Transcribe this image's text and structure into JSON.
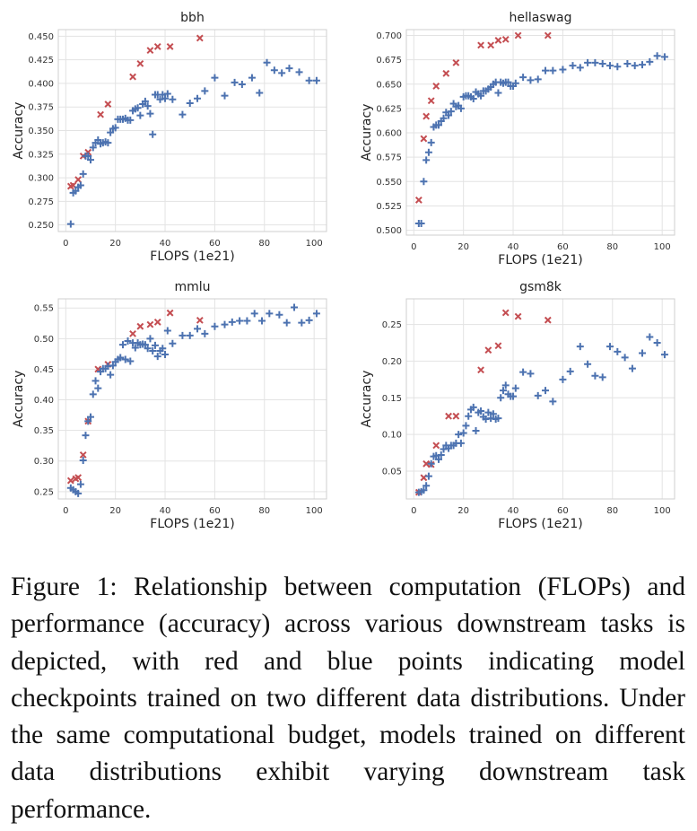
{
  "chart_data": [
    {
      "type": "scatter",
      "title": "bbh",
      "xlabel": "FLOPS (1e21)",
      "ylabel": "Accuracy",
      "xlim": [
        -3,
        105
      ],
      "ylim": [
        0.243,
        0.457
      ],
      "xticks": [
        0,
        20,
        40,
        60,
        80,
        100
      ],
      "yticks": [
        0.25,
        0.275,
        0.3,
        0.325,
        0.35,
        0.375,
        0.4,
        0.425,
        0.45
      ],
      "ytick_labels": [
        "0.250",
        "0.275",
        "0.300",
        "0.325",
        "0.350",
        "0.375",
        "0.400",
        "0.425",
        "0.450"
      ],
      "grid": true,
      "series": [
        {
          "marker": "x",
          "color": "#c44e52",
          "x": [
            2,
            3,
            5,
            7,
            9,
            14,
            17,
            27,
            30,
            34,
            37,
            42,
            54
          ],
          "y": [
            0.291,
            0.292,
            0.298,
            0.323,
            0.327,
            0.367,
            0.378,
            0.407,
            0.421,
            0.435,
            0.439,
            0.439,
            0.448
          ]
        },
        {
          "marker": "+",
          "color": "#4c72b0",
          "x": [
            2,
            3,
            4,
            5,
            6,
            7,
            8,
            9,
            10,
            11,
            12,
            13,
            14,
            15,
            16,
            17,
            18,
            19,
            20,
            21,
            22,
            23,
            24,
            25,
            26,
            27,
            28,
            29,
            30,
            31,
            32,
            33,
            34,
            35,
            36,
            37,
            38,
            39,
            40,
            41,
            43,
            47,
            50,
            53,
            56,
            60,
            64,
            68,
            71,
            75,
            78,
            81,
            84,
            87,
            90,
            94,
            98,
            101
          ],
          "y": [
            0.251,
            0.284,
            0.286,
            0.29,
            0.292,
            0.304,
            0.323,
            0.323,
            0.319,
            0.332,
            0.337,
            0.34,
            0.336,
            0.337,
            0.338,
            0.337,
            0.348,
            0.352,
            0.353,
            0.362,
            0.362,
            0.362,
            0.363,
            0.361,
            0.361,
            0.371,
            0.373,
            0.374,
            0.366,
            0.378,
            0.381,
            0.376,
            0.368,
            0.346,
            0.388,
            0.388,
            0.383,
            0.388,
            0.384,
            0.389,
            0.383,
            0.367,
            0.379,
            0.384,
            0.392,
            0.406,
            0.387,
            0.401,
            0.399,
            0.406,
            0.39,
            0.422,
            0.414,
            0.411,
            0.416,
            0.412,
            0.403,
            0.403
          ]
        }
      ]
    },
    {
      "type": "scatter",
      "title": "hellaswag",
      "xlabel": "FLOPS (1e21)",
      "ylabel": "Accuracy",
      "xlim": [
        -3,
        105
      ],
      "ylim": [
        0.495,
        0.706
      ],
      "xticks": [
        0,
        20,
        40,
        60,
        80,
        100
      ],
      "yticks": [
        0.5,
        0.525,
        0.55,
        0.575,
        0.6,
        0.625,
        0.65,
        0.675,
        0.7
      ],
      "ytick_labels": [
        "0.500",
        "0.525",
        "0.550",
        "0.575",
        "0.600",
        "0.625",
        "0.650",
        "0.675",
        "0.700"
      ],
      "grid": true,
      "series": [
        {
          "marker": "x",
          "color": "#c44e52",
          "x": [
            2,
            4,
            5,
            7,
            9,
            13,
            17,
            27,
            31,
            34,
            37,
            42,
            54
          ],
          "y": [
            0.531,
            0.594,
            0.617,
            0.633,
            0.648,
            0.661,
            0.672,
            0.69,
            0.69,
            0.695,
            0.696,
            0.7,
            0.7
          ],
          "names": []
        },
        {
          "marker": "+",
          "color": "#4c72b0",
          "x": [
            2,
            3,
            4,
            5,
            6,
            7,
            8,
            9,
            10,
            11,
            12,
            13,
            14,
            15,
            16,
            17,
            18,
            19,
            20,
            21,
            22,
            23,
            24,
            25,
            26,
            27,
            28,
            29,
            30,
            31,
            32,
            33,
            34,
            35,
            36,
            37,
            38,
            39,
            40,
            41,
            44,
            47,
            50,
            53,
            56,
            60,
            64,
            67,
            70,
            73,
            76,
            79,
            82,
            86,
            89,
            92,
            95,
            98,
            101
          ],
          "y": [
            0.507,
            0.507,
            0.55,
            0.572,
            0.58,
            0.59,
            0.606,
            0.608,
            0.608,
            0.612,
            0.615,
            0.621,
            0.618,
            0.622,
            0.63,
            0.627,
            0.628,
            0.625,
            0.637,
            0.638,
            0.638,
            0.637,
            0.635,
            0.642,
            0.64,
            0.638,
            0.643,
            0.643,
            0.645,
            0.647,
            0.65,
            0.652,
            0.641,
            0.652,
            0.651,
            0.652,
            0.652,
            0.648,
            0.648,
            0.651,
            0.657,
            0.654,
            0.655,
            0.664,
            0.664,
            0.665,
            0.669,
            0.667,
            0.672,
            0.672,
            0.671,
            0.669,
            0.668,
            0.671,
            0.669,
            0.67,
            0.673,
            0.679,
            0.678
          ]
        }
      ]
    },
    {
      "type": "scatter",
      "title": "mmlu",
      "xlabel": "FLOPS (1e21)",
      "ylabel": "Accuracy",
      "xlim": [
        -3,
        105
      ],
      "ylim": [
        0.238,
        0.565
      ],
      "xticks": [
        0,
        20,
        40,
        60,
        80,
        100
      ],
      "yticks": [
        0.25,
        0.3,
        0.35,
        0.4,
        0.45,
        0.5,
        0.55
      ],
      "ytick_labels": [
        "0.25",
        "0.30",
        "0.35",
        "0.40",
        "0.45",
        "0.50",
        "0.55"
      ],
      "grid": true,
      "series": [
        {
          "marker": "x",
          "color": "#c44e52",
          "x": [
            2,
            4,
            5,
            7,
            9,
            13,
            17,
            27,
            30,
            34,
            37,
            42,
            54
          ],
          "y": [
            0.268,
            0.271,
            0.273,
            0.31,
            0.365,
            0.45,
            0.458,
            0.508,
            0.52,
            0.523,
            0.527,
            0.542,
            0.53
          ]
        },
        {
          "marker": "+",
          "color": "#4c72b0",
          "x": [
            2,
            3,
            4,
            5,
            6,
            7,
            8,
            9,
            10,
            11,
            12,
            13,
            14,
            15,
            16,
            17,
            18,
            19,
            20,
            21,
            22,
            23,
            24,
            25,
            26,
            27,
            28,
            29,
            30,
            31,
            32,
            33,
            34,
            35,
            36,
            37,
            38,
            39,
            40,
            41,
            43,
            47,
            50,
            53,
            56,
            60,
            64,
            67,
            70,
            73,
            76,
            79,
            82,
            86,
            89,
            92,
            95,
            98,
            101
          ],
          "y": [
            0.256,
            0.253,
            0.25,
            0.247,
            0.262,
            0.301,
            0.342,
            0.365,
            0.372,
            0.409,
            0.431,
            0.419,
            0.446,
            0.451,
            0.451,
            0.455,
            0.441,
            0.456,
            0.462,
            0.466,
            0.469,
            0.49,
            0.466,
            0.496,
            0.463,
            0.493,
            0.485,
            0.493,
            0.49,
            0.491,
            0.49,
            0.484,
            0.5,
            0.48,
            0.489,
            0.471,
            0.48,
            0.484,
            0.474,
            0.513,
            0.492,
            0.505,
            0.505,
            0.516,
            0.508,
            0.52,
            0.523,
            0.527,
            0.529,
            0.529,
            0.541,
            0.529,
            0.541,
            0.539,
            0.526,
            0.551,
            0.526,
            0.53,
            0.541
          ]
        }
      ]
    },
    {
      "type": "scatter",
      "title": "gsm8k",
      "xlabel": "FLOPS (1e21)",
      "ylabel": "Accuracy",
      "xlim": [
        -3,
        105
      ],
      "ylim": [
        0.012,
        0.285
      ],
      "xticks": [
        0,
        20,
        40,
        60,
        80,
        100
      ],
      "yticks": [
        0.05,
        0.1,
        0.15,
        0.2,
        0.25
      ],
      "ytick_labels": [
        "0.05",
        "0.10",
        "0.15",
        "0.20",
        "0.25"
      ],
      "grid": true,
      "series": [
        {
          "marker": "x",
          "color": "#c44e52",
          "x": [
            2,
            4,
            5,
            7,
            9,
            14,
            17,
            27,
            30,
            34,
            37,
            42,
            54
          ],
          "y": [
            0.021,
            0.041,
            0.06,
            0.059,
            0.085,
            0.125,
            0.125,
            0.188,
            0.215,
            0.221,
            0.266,
            0.261,
            0.256
          ]
        },
        {
          "marker": "+",
          "color": "#4c72b0",
          "x": [
            2,
            3,
            4,
            5,
            6,
            7,
            8,
            9,
            10,
            11,
            12,
            13,
            14,
            15,
            16,
            17,
            18,
            19,
            20,
            21,
            22,
            23,
            24,
            25,
            26,
            27,
            28,
            29,
            30,
            31,
            32,
            33,
            34,
            35,
            36,
            37,
            38,
            39,
            40,
            41,
            44,
            47,
            50,
            53,
            56,
            60,
            63,
            67,
            70,
            73,
            76,
            79,
            82,
            85,
            88,
            92,
            95,
            98,
            101
          ],
          "y": [
            0.021,
            0.022,
            0.024,
            0.03,
            0.043,
            0.06,
            0.07,
            0.071,
            0.066,
            0.072,
            0.08,
            0.085,
            0.081,
            0.085,
            0.085,
            0.088,
            0.1,
            0.088,
            0.102,
            0.112,
            0.125,
            0.134,
            0.137,
            0.105,
            0.13,
            0.132,
            0.124,
            0.121,
            0.13,
            0.122,
            0.128,
            0.121,
            0.122,
            0.15,
            0.16,
            0.167,
            0.155,
            0.152,
            0.152,
            0.163,
            0.185,
            0.183,
            0.153,
            0.16,
            0.145,
            0.175,
            0.186,
            0.22,
            0.196,
            0.18,
            0.178,
            0.22,
            0.213,
            0.205,
            0.19,
            0.211,
            0.233,
            0.225,
            0.209
          ]
        }
      ]
    }
  ],
  "caption": "Figure 1: Relationship between computation (FLOPs) and performance (accuracy) across various downstream tasks is depicted, with red and blue points indicating model checkpoints trained on two different data distributions. Under the same computational budget, models trained on different data distributions exhibit varying downstream task performance."
}
